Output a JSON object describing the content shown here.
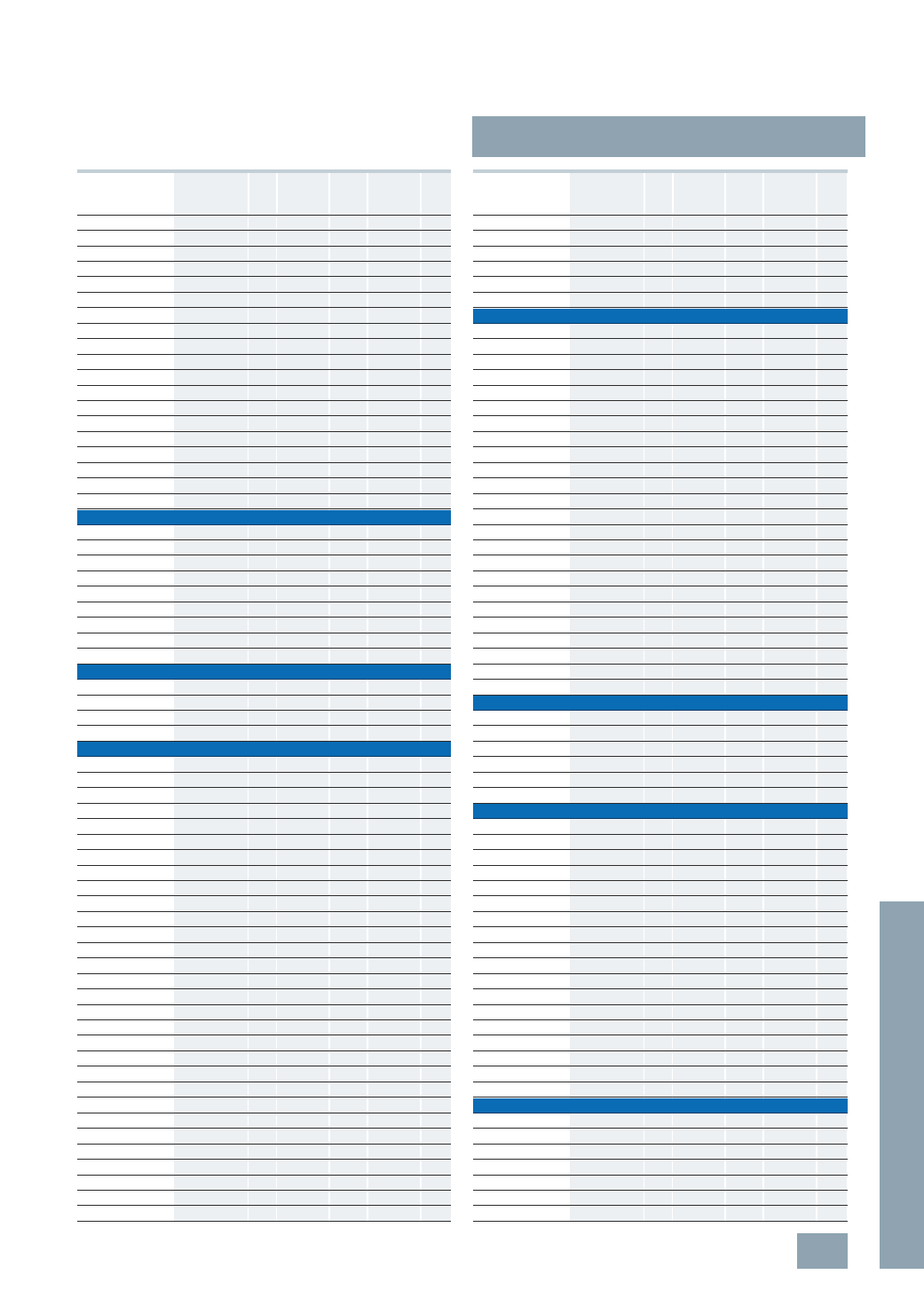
{
  "colors": {
    "title_bar": "#8fa4b0",
    "section_header": "#0a6cb4",
    "column_tint": "#edf0f3",
    "rule": "#2b2b2b"
  },
  "left_table": {
    "blocks": [
      {
        "type": "rows",
        "count": 19
      },
      {
        "type": "section",
        "count": 1
      },
      {
        "type": "rows",
        "count": 9
      },
      {
        "type": "section",
        "count": 1
      },
      {
        "type": "rows",
        "count": 4
      },
      {
        "type": "section",
        "count": 1
      },
      {
        "type": "rows",
        "count": 30
      }
    ]
  },
  "right_table": {
    "blocks": [
      {
        "type": "rows",
        "count": 6
      },
      {
        "type": "section",
        "count": 1
      },
      {
        "type": "rows",
        "count": 24
      },
      {
        "type": "section",
        "count": 1
      },
      {
        "type": "rows",
        "count": 6
      },
      {
        "type": "section",
        "count": 1
      },
      {
        "type": "rows",
        "count": 18
      },
      {
        "type": "section",
        "count": 1
      },
      {
        "type": "rows",
        "count": 7
      }
    ]
  }
}
